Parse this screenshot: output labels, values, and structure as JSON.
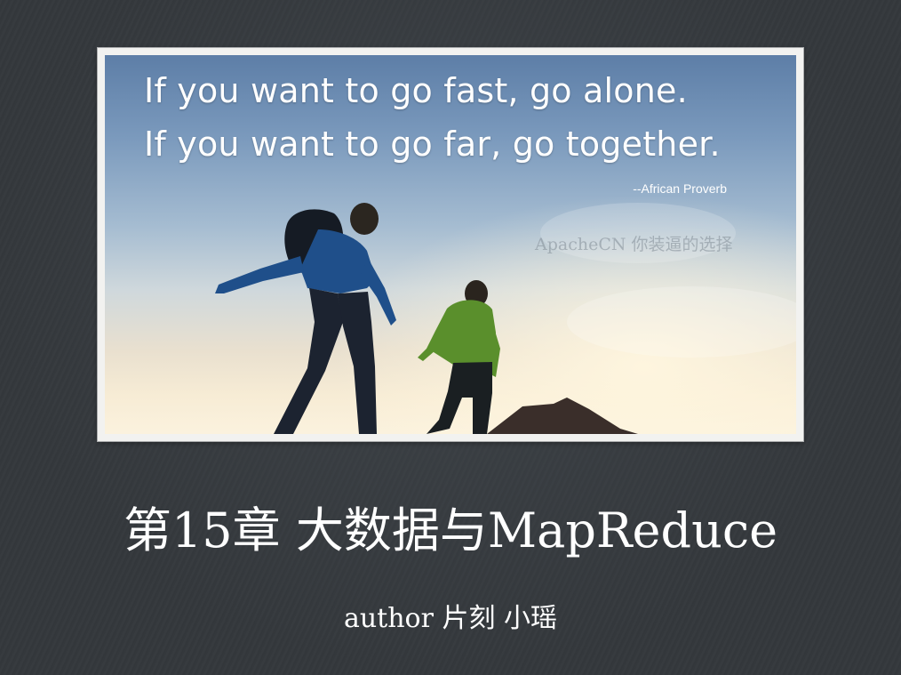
{
  "quote": {
    "line1": "If you want to go fast, go alone.",
    "line2": "If you want to go far, go together.",
    "attribution": "--African Proverb"
  },
  "watermark": "ApacheCN  你装逼的选择",
  "title": "第15章   大数据与MapReduce",
  "author": "author  片刻  小瑶",
  "colors": {
    "background": "#34383c",
    "text": "#ffffff"
  }
}
